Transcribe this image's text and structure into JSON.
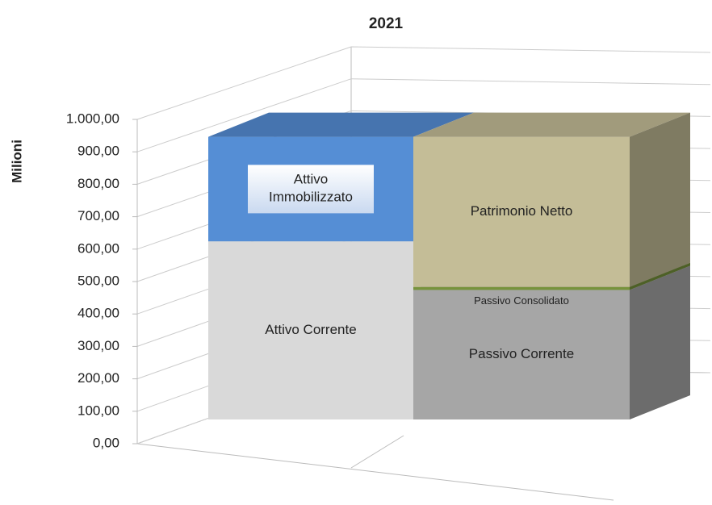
{
  "chart_data": {
    "type": "bar3d_stacked",
    "title": "2021",
    "y_label": "Milioni",
    "categories": [
      null,
      null
    ],
    "series": [
      {
        "name": "Attivo Corrente",
        "color": "#d9d9d9",
        "values": [
          605,
          null
        ]
      },
      {
        "name": "Attivo Immobilizzato",
        "color": "#558ed5",
        "values": [
          355,
          null
        ]
      },
      {
        "name": "Passivo Corrente",
        "color": "#a6a6a6",
        "values": [
          null,
          440
        ]
      },
      {
        "name": "Passivo Consolidato",
        "color": "#77933c",
        "values": [
          null,
          10
        ]
      },
      {
        "name": "Patrimonio Netto",
        "color": "#c4bd97",
        "values": [
          null,
          510
        ]
      }
    ],
    "ylim": [
      0,
      1000
    ],
    "yticks": [
      {
        "value": 0,
        "label": "0,00"
      },
      {
        "value": 100,
        "label": "100,00"
      },
      {
        "value": 200,
        "label": "200,00"
      },
      {
        "value": 300,
        "label": "300,00"
      },
      {
        "value": 400,
        "label": "400,00"
      },
      {
        "value": 500,
        "label": "500,00"
      },
      {
        "value": 600,
        "label": "600,00"
      },
      {
        "value": 700,
        "label": "700,00"
      },
      {
        "value": 800,
        "label": "800,00"
      },
      {
        "value": 900,
        "label": "900,00"
      },
      {
        "value": 1000,
        "label": "1.000,00"
      }
    ],
    "grid": true
  }
}
